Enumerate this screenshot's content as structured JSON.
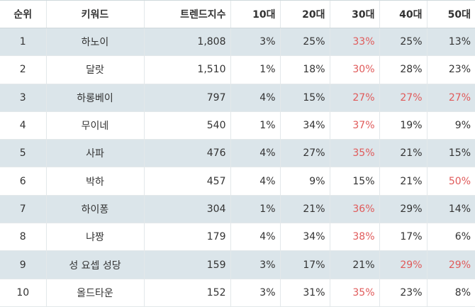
{
  "colors": {
    "highlight": "#e05a5a",
    "stripe": "#dbe5ea"
  },
  "table": {
    "headers": [
      "순위",
      "키워드",
      "트렌드지수",
      "10대",
      "20대",
      "30대",
      "40대",
      "50대"
    ],
    "rows": [
      {
        "rank": "1",
        "keyword": "하노이",
        "trend": "1,808",
        "a10": "3%",
        "a20": "25%",
        "a30": "33%",
        "a40": "25%",
        "a50": "13%",
        "hl": [
          false,
          false,
          true,
          false,
          false
        ]
      },
      {
        "rank": "2",
        "keyword": "달랏",
        "trend": "1,510",
        "a10": "1%",
        "a20": "18%",
        "a30": "30%",
        "a40": "28%",
        "a50": "23%",
        "hl": [
          false,
          false,
          true,
          false,
          false
        ]
      },
      {
        "rank": "3",
        "keyword": "하롱베이",
        "trend": "797",
        "a10": "4%",
        "a20": "15%",
        "a30": "27%",
        "a40": "27%",
        "a50": "27%",
        "hl": [
          false,
          false,
          true,
          true,
          true
        ]
      },
      {
        "rank": "4",
        "keyword": "무이네",
        "trend": "540",
        "a10": "1%",
        "a20": "34%",
        "a30": "37%",
        "a40": "19%",
        "a50": "9%",
        "hl": [
          false,
          false,
          true,
          false,
          false
        ]
      },
      {
        "rank": "5",
        "keyword": "사파",
        "trend": "476",
        "a10": "4%",
        "a20": "27%",
        "a30": "35%",
        "a40": "21%",
        "a50": "15%",
        "hl": [
          false,
          false,
          true,
          false,
          false
        ]
      },
      {
        "rank": "6",
        "keyword": "박하",
        "trend": "457",
        "a10": "4%",
        "a20": "9%",
        "a30": "15%",
        "a40": "21%",
        "a50": "50%",
        "hl": [
          false,
          false,
          false,
          false,
          true
        ]
      },
      {
        "rank": "7",
        "keyword": "하이퐁",
        "trend": "304",
        "a10": "1%",
        "a20": "21%",
        "a30": "36%",
        "a40": "29%",
        "a50": "14%",
        "hl": [
          false,
          false,
          true,
          false,
          false
        ]
      },
      {
        "rank": "8",
        "keyword": "냐짱",
        "trend": "179",
        "a10": "4%",
        "a20": "34%",
        "a30": "38%",
        "a40": "17%",
        "a50": "6%",
        "hl": [
          false,
          false,
          true,
          false,
          false
        ]
      },
      {
        "rank": "9",
        "keyword": "성 요셉 성당",
        "trend": "159",
        "a10": "3%",
        "a20": "17%",
        "a30": "21%",
        "a40": "29%",
        "a50": "29%",
        "hl": [
          false,
          false,
          false,
          true,
          true
        ]
      },
      {
        "rank": "10",
        "keyword": "올드타운",
        "trend": "152",
        "a10": "3%",
        "a20": "31%",
        "a30": "35%",
        "a40": "23%",
        "a50": "8%",
        "hl": [
          false,
          false,
          true,
          false,
          false
        ]
      }
    ]
  }
}
